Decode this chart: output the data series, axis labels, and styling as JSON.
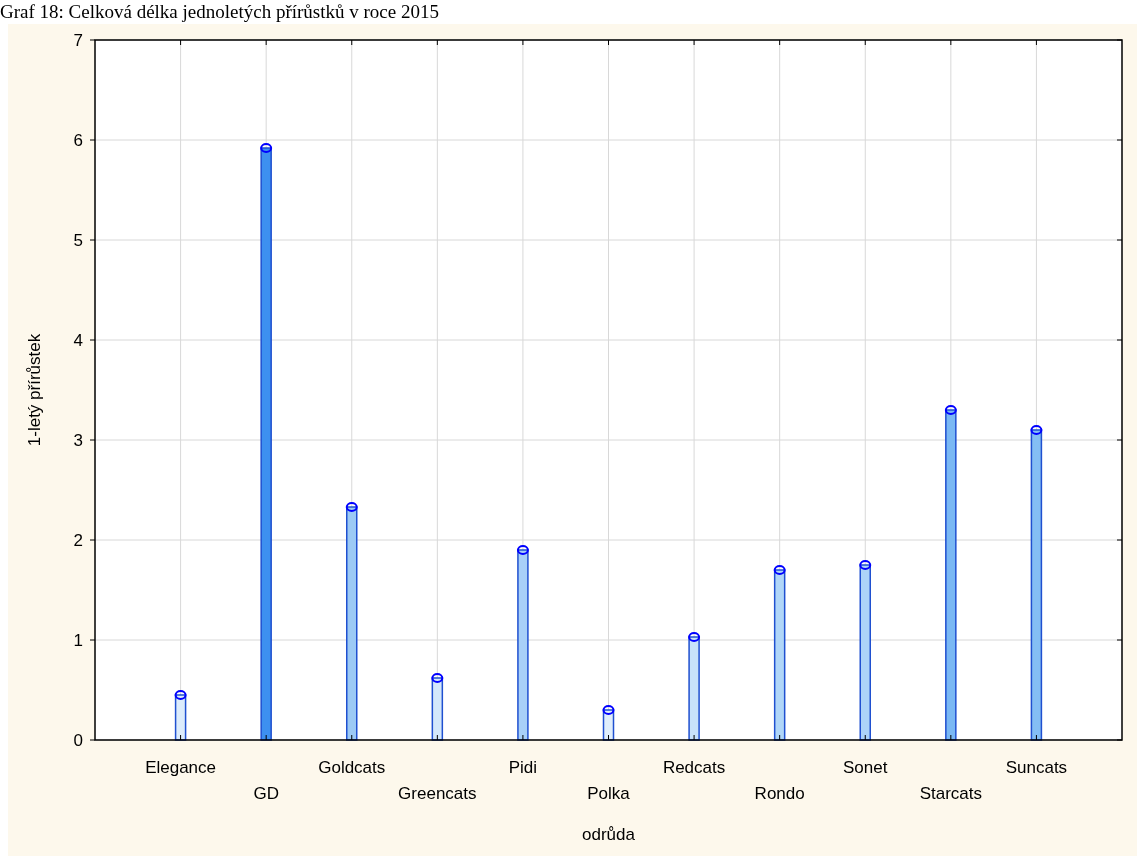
{
  "chart_data": {
    "type": "bar",
    "title": "Graf 18: Celková délka jednoletých přírůstků v roce 2015",
    "xlabel": "odrůda",
    "ylabel": "1-letý přírůstek",
    "categories": [
      "Elegance",
      "GD",
      "Goldcats",
      "Greencats",
      "Pidi",
      "Polka",
      "Redcats",
      "Rondo",
      "Sonet",
      "Starcats",
      "Suncats"
    ],
    "series": [
      {
        "type": "bar",
        "colors": [
          "#dcecfc",
          "#3d90f0",
          "#9ccaf5",
          "#d4e8fb",
          "#a8d0f8",
          "#e0eefc",
          "#c8e2fa",
          "#b0d6f8",
          "#acd4f8",
          "#7ab8f4",
          "#84bef4"
        ],
        "values": [
          0.45,
          5.92,
          2.33,
          0.62,
          1.9,
          0.3,
          1.03,
          1.7,
          1.75,
          3.3,
          3.1
        ]
      },
      {
        "type": "scatter",
        "color": "#0000ff",
        "marker": "circle",
        "x": [
          "Elegance",
          "GD",
          "Goldcats",
          "Greencats",
          "Pidi",
          "Polka",
          "Redcats",
          "Rondo",
          "Sonet",
          "Starcats",
          "Suncats"
        ],
        "values": [
          0.45,
          5.92,
          2.33,
          0.62,
          1.9,
          0.3,
          1.03,
          1.7,
          1.75,
          3.3,
          3.1
        ]
      }
    ],
    "ylim": [
      0,
      7
    ],
    "yticks": [
      0,
      1,
      2,
      3,
      4,
      5,
      6,
      7
    ],
    "grid": true
  }
}
